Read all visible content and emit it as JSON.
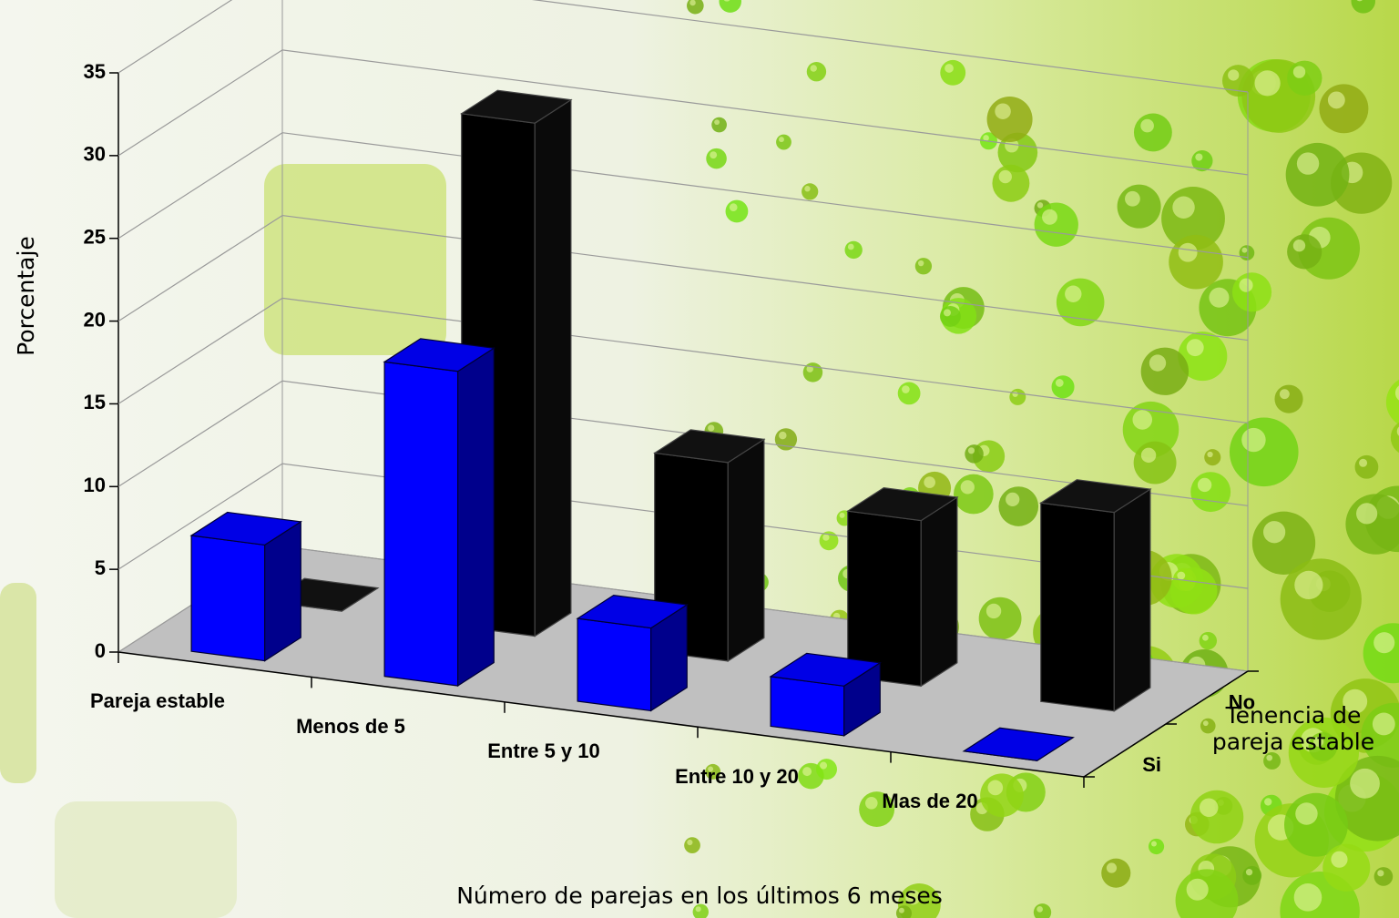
{
  "chart_data": {
    "type": "bar3d",
    "x_axis_title": "Número de parejas en los últimos 6 meses",
    "y_axis_title": "Porcentaje",
    "depth_axis_title": "Tenencia de pareja estable",
    "categories": [
      "Pareja estable",
      "Menos de 5",
      "Entre 5 y 10",
      "Entre 10 y 20",
      "Mas de 20"
    ],
    "series": [
      {
        "name": "Si",
        "color": "#0000ff",
        "values": [
          7,
          19,
          5,
          3,
          0
        ]
      },
      {
        "name": "No",
        "color": "#000000",
        "values": [
          0,
          31,
          12,
          10,
          12
        ]
      }
    ],
    "ylim": [
      0,
      35
    ],
    "yticks": [
      0,
      5,
      10,
      15,
      20,
      25,
      30,
      35
    ],
    "grid": true
  }
}
